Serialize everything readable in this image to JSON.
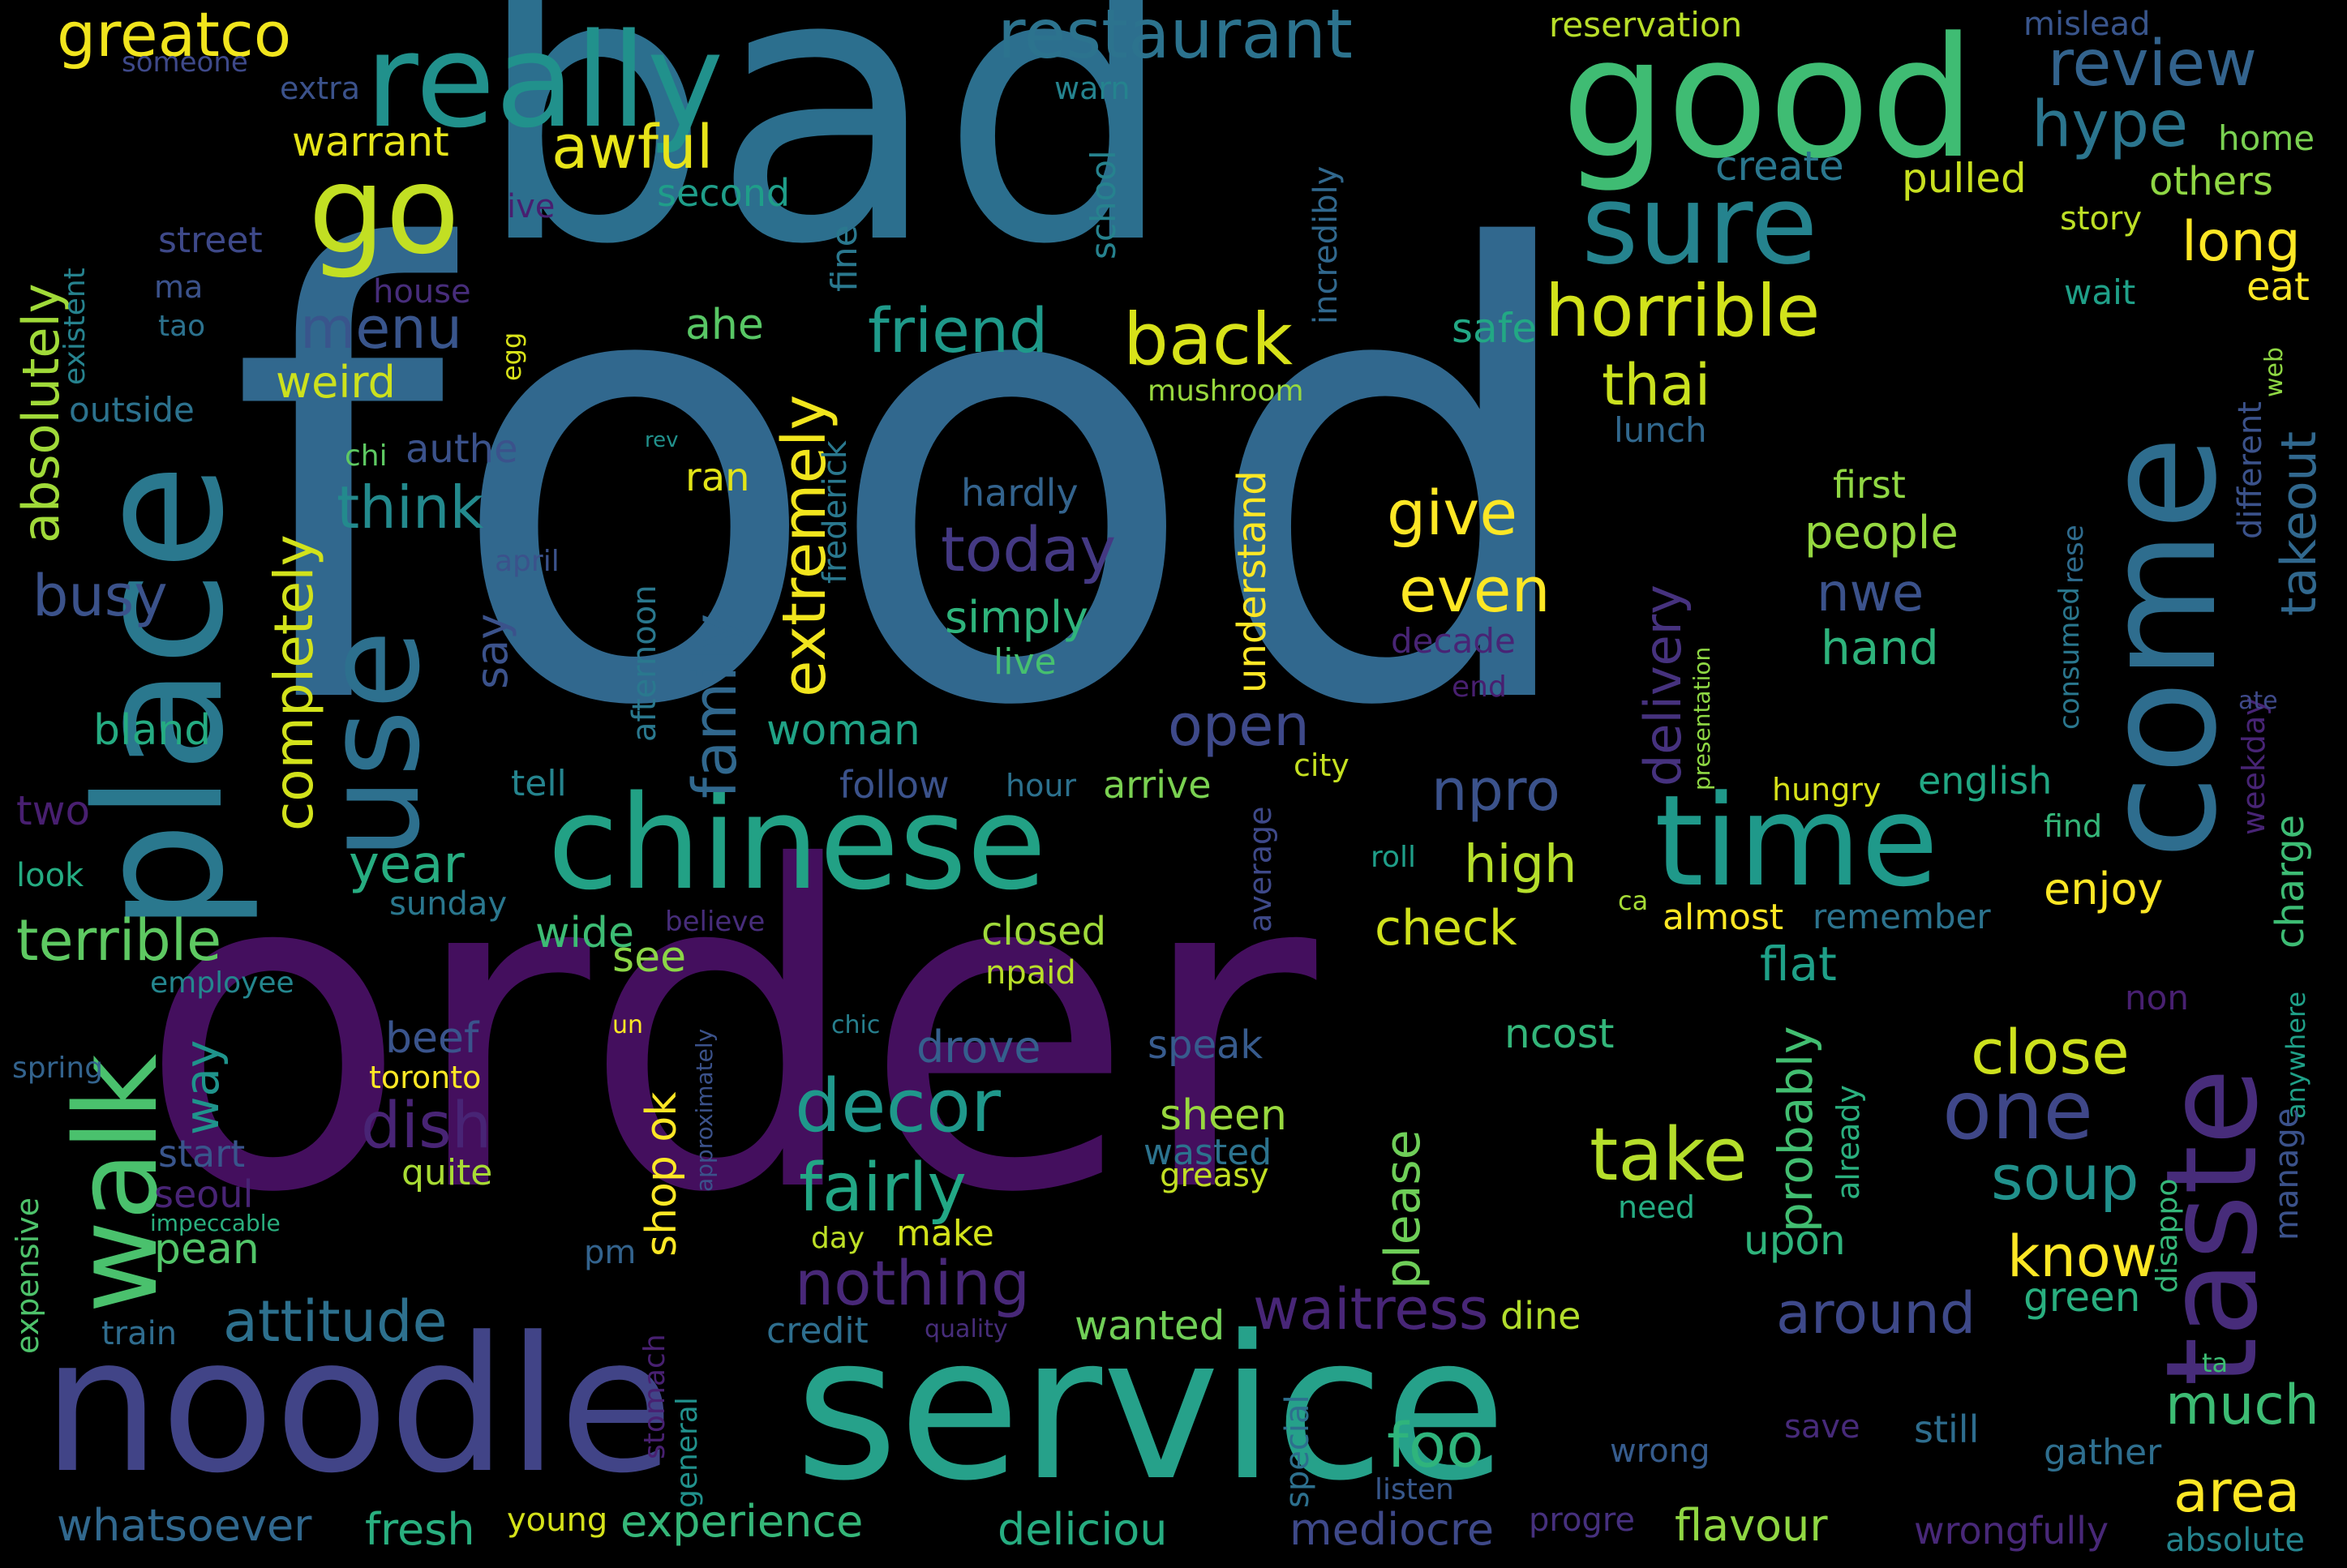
{
  "words": [
    {
      "text": "food",
      "color": "#31688e"
    },
    {
      "text": "order",
      "color": "#440f5e"
    },
    {
      "text": "bad",
      "color": "#2c6f8e"
    },
    {
      "text": "service",
      "color": "#26a18a"
    },
    {
      "text": "noodle",
      "color": "#414487"
    },
    {
      "text": "place",
      "color": "#2a788e"
    },
    {
      "text": "come",
      "color": "#2e6d8e"
    },
    {
      "text": "good",
      "color": "#3fbc73"
    },
    {
      "text": "really",
      "color": "#21918c"
    },
    {
      "text": "taste",
      "color": "#472c7a"
    },
    {
      "text": "chinese",
      "color": "#22a185"
    },
    {
      "text": "time",
      "color": "#1f998a"
    },
    {
      "text": "use",
      "color": "#2d708e"
    },
    {
      "text": "sure",
      "color": "#25838e"
    },
    {
      "text": "go",
      "color": "#c2df23"
    },
    {
      "text": "walk",
      "color": "#4ac16d"
    },
    {
      "text": "horrible",
      "color": "#d2e21b"
    },
    {
      "text": "restaurant",
      "color": "#2c738e"
    },
    {
      "text": "review",
      "color": "#33638d"
    },
    {
      "text": "hype",
      "color": "#2b758e"
    },
    {
      "text": "greatco",
      "color": "#f1e51d"
    },
    {
      "text": "awful",
      "color": "#e7e419"
    },
    {
      "text": "one",
      "color": "#3f4788"
    },
    {
      "text": "take",
      "color": "#b5de2b"
    },
    {
      "text": "decor",
      "color": "#1f988b"
    },
    {
      "text": "fairly",
      "color": "#22a785"
    },
    {
      "text": "nothing",
      "color": "#482878"
    },
    {
      "text": "close",
      "color": "#cde11d"
    },
    {
      "text": "soup",
      "color": "#21918c"
    },
    {
      "text": "know",
      "color": "#fde725"
    },
    {
      "text": "long",
      "color": "#fde725"
    },
    {
      "text": "back",
      "color": "#d8e219"
    },
    {
      "text": "friend",
      "color": "#1f9a8a"
    },
    {
      "text": "menu",
      "color": "#39558c"
    },
    {
      "text": "thai",
      "color": "#cae11f"
    },
    {
      "text": "think",
      "color": "#238a8d"
    },
    {
      "text": "busy",
      "color": "#3b528b"
    },
    {
      "text": "terrible",
      "color": "#5ec962"
    },
    {
      "text": "attitude",
      "color": "#2d708e"
    },
    {
      "text": "absolutely",
      "color": "#a0da39"
    },
    {
      "text": "completely",
      "color": "#d2e21b"
    },
    {
      "text": "family",
      "color": "#31688e"
    },
    {
      "text": "extremely",
      "color": "#f1e51d"
    },
    {
      "text": "delivery",
      "color": "#46327e"
    },
    {
      "text": "takeout",
      "color": "#31688e"
    },
    {
      "text": "npro",
      "color": "#3b528b"
    },
    {
      "text": "give",
      "color": "#fde725"
    },
    {
      "text": "even",
      "color": "#fde725"
    },
    {
      "text": "today",
      "color": "#443983"
    },
    {
      "text": "open",
      "color": "#3e4989"
    },
    {
      "text": "waitress",
      "color": "#482677"
    },
    {
      "text": "around",
      "color": "#3e4989"
    },
    {
      "text": "dish",
      "color": "#482475"
    },
    {
      "text": "much",
      "color": "#3dbc74"
    },
    {
      "text": "area",
      "color": "#fde725"
    },
    {
      "text": "whatsoever",
      "color": "#31688e"
    },
    {
      "text": "experience",
      "color": "#35b779"
    },
    {
      "text": "deliciou",
      "color": "#26ad81"
    },
    {
      "text": "mediocre",
      "color": "#3e4989"
    },
    {
      "text": "flavour",
      "color": "#90d743"
    },
    {
      "text": "wrongfully",
      "color": "#482878"
    },
    {
      "text": "absolute",
      "color": "#25848e"
    },
    {
      "text": "fresh",
      "color": "#29af7f"
    },
    {
      "text": "young",
      "color": "#d5e21a"
    },
    {
      "text": "progre",
      "color": "#46307e"
    },
    {
      "text": "foo",
      "color": "#2fb47c"
    },
    {
      "text": "year",
      "color": "#27ad81"
    },
    {
      "text": "high",
      "color": "#b5de2b"
    },
    {
      "text": "check",
      "color": "#d0e11c"
    },
    {
      "text": "enjoy",
      "color": "#fde725"
    },
    {
      "text": "flat",
      "color": "#1fa088"
    },
    {
      "text": "hand",
      "color": "#2eb37c"
    },
    {
      "text": "nwe",
      "color": "#3b528b"
    },
    {
      "text": "people",
      "color": "#95d840"
    },
    {
      "text": "first",
      "color": "#90d743"
    },
    {
      "text": "please",
      "color": "#6ece58"
    },
    {
      "text": "probably",
      "color": "#42be71"
    },
    {
      "text": "shop ok",
      "color": "#fde725"
    },
    {
      "text": "say",
      "color": "#3b528b"
    },
    {
      "text": "way",
      "color": "#1f948c"
    },
    {
      "text": "woman",
      "color": "#20a386"
    },
    {
      "text": "bland",
      "color": "#25ac82"
    },
    {
      "text": "two",
      "color": "#481f70"
    },
    {
      "text": "see",
      "color": "#8bd646"
    },
    {
      "text": "wide",
      "color": "#3dbc74"
    },
    {
      "text": "sheen",
      "color": "#98d83e"
    },
    {
      "text": "speak",
      "color": "#375b8d"
    },
    {
      "text": "drove",
      "color": "#355f8d"
    },
    {
      "text": "beef",
      "color": "#3a548c"
    },
    {
      "text": "toronto",
      "color": "#fde725"
    },
    {
      "text": "seoul",
      "color": "#482475"
    },
    {
      "text": "start",
      "color": "#39558c"
    },
    {
      "text": "pean",
      "color": "#52c569"
    },
    {
      "text": "quite",
      "color": "#a8db34"
    },
    {
      "text": "wasted",
      "color": "#2c738e"
    },
    {
      "text": "greasy",
      "color": "#c2df23"
    },
    {
      "text": "day",
      "color": "#bddf26"
    },
    {
      "text": "make",
      "color": "#d2e21b"
    },
    {
      "text": "upon",
      "color": "#2fb47c"
    },
    {
      "text": "green",
      "color": "#29af7f"
    },
    {
      "text": "stil",
      "color": "#3b528b"
    },
    {
      "text": "dine",
      "color": "#b2dd2d"
    },
    {
      "text": "wanted",
      "color": "#70cf57"
    },
    {
      "text": "credit",
      "color": "#2e6e8e"
    },
    {
      "text": "quality",
      "color": "#472d7b"
    },
    {
      "text": "still",
      "color": "#2e6d8e"
    },
    {
      "text": "gather",
      "color": "#2e6e8e"
    },
    {
      "text": "save",
      "color": "#472a7a"
    },
    {
      "text": "wrong",
      "color": "#365c8d"
    },
    {
      "text": "listen",
      "color": "#38588c"
    },
    {
      "text": "ncost",
      "color": "#33b67a"
    },
    {
      "text": "need",
      "color": "#25ac82"
    },
    {
      "text": "closed",
      "color": "#9fda3a"
    },
    {
      "text": "npaid",
      "color": "#b8de29"
    },
    {
      "text": "almost",
      "color": "#fde725"
    },
    {
      "text": "remember",
      "color": "#2c738e"
    },
    {
      "text": "ca",
      "color": "#a5db36"
    },
    {
      "text": "roll",
      "color": "#1f9e89"
    },
    {
      "text": "sunday",
      "color": "#2a778e"
    },
    {
      "text": "employee",
      "color": "#24868e"
    },
    {
      "text": "spring",
      "color": "#33638d"
    },
    {
      "text": "look",
      "color": "#25ac82"
    },
    {
      "text": "train",
      "color": "#2f6c8e"
    },
    {
      "text": "expensive",
      "color": "#4ec36b"
    },
    {
      "text": "impeccable",
      "color": "#2ab07f"
    },
    {
      "text": "pm",
      "color": "#33638d"
    },
    {
      "text": "tell",
      "color": "#25848e"
    },
    {
      "text": "follow",
      "color": "#3b528b"
    },
    {
      "text": "hour",
      "color": "#2c718e"
    },
    {
      "text": "arrive",
      "color": "#7ad151"
    },
    {
      "text": "city",
      "color": "#c5e021"
    },
    {
      "text": "hungry",
      "color": "#d8e219"
    },
    {
      "text": "english",
      "color": "#22a884"
    },
    {
      "text": "find",
      "color": "#35b779"
    },
    {
      "text": "average",
      "color": "#3e4989"
    },
    {
      "text": "special",
      "color": "#2d708e"
    },
    {
      "text": "general",
      "color": "#21918c"
    },
    {
      "text": "stomach",
      "color": "#482071"
    },
    {
      "text": "ahe",
      "color": "#58c765"
    },
    {
      "text": "ran",
      "color": "#e2e418"
    },
    {
      "text": "safe",
      "color": "#22a884"
    },
    {
      "text": "mushroom",
      "color": "#98d83e"
    },
    {
      "text": "lunch",
      "color": "#31688e"
    },
    {
      "text": "hardly",
      "color": "#33638d"
    },
    {
      "text": "simply",
      "color": "#2fb47c"
    },
    {
      "text": "live",
      "color": "#46c06f"
    },
    {
      "text": "decade",
      "color": "#482475"
    },
    {
      "text": "end",
      "color": "#481f70"
    },
    {
      "text": "understand",
      "color": "#fde725"
    },
    {
      "text": "weird",
      "color": "#cde11d"
    },
    {
      "text": "authe",
      "color": "#3b528b"
    },
    {
      "text": "outside",
      "color": "#2c728e"
    },
    {
      "text": "existent",
      "color": "#26828e"
    },
    {
      "text": "tao",
      "color": "#2c728e"
    },
    {
      "text": "ma",
      "color": "#3b528b"
    },
    {
      "text": "street",
      "color": "#3e4989"
    },
    {
      "text": "house",
      "color": "#472d7b"
    },
    {
      "text": "ive",
      "color": "#481f70"
    },
    {
      "text": "egg",
      "color": "#d8e219"
    },
    {
      "text": "chi",
      "color": "#5ec962"
    },
    {
      "text": "rev",
      "color": "#21918c"
    },
    {
      "text": "april",
      "color": "#3b528b"
    },
    {
      "text": "afternoon",
      "color": "#2a788e"
    },
    {
      "text": "frederick",
      "color": "#2a788e"
    },
    {
      "text": "fine",
      "color": "#2a788e"
    },
    {
      "text": "school",
      "color": "#26828e"
    },
    {
      "text": "incredibly",
      "color": "#31688e"
    },
    {
      "text": "warrant",
      "color": "#e5e419"
    },
    {
      "text": "second",
      "color": "#1f9e89"
    },
    {
      "text": "extra",
      "color": "#3b528b"
    },
    {
      "text": "someone",
      "color": "#3e4989"
    },
    {
      "text": "warn",
      "color": "#25838e"
    },
    {
      "text": "reservation",
      "color": "#b8de29"
    },
    {
      "text": "mislead",
      "color": "#39558c"
    },
    {
      "text": "create",
      "color": "#2a778e"
    },
    {
      "text": "pulled",
      "color": "#c8e020"
    },
    {
      "text": "others",
      "color": "#8fd744"
    },
    {
      "text": "home",
      "color": "#7ad151"
    },
    {
      "text": "story",
      "color": "#bddf26"
    },
    {
      "text": "eat",
      "color": "#fde725"
    },
    {
      "text": "wait",
      "color": "#1fa088"
    },
    {
      "text": "web",
      "color": "#8fd744"
    },
    {
      "text": "different",
      "color": "#3b528b"
    },
    {
      "text": "consumed",
      "color": "#2a778e"
    },
    {
      "text": "rese",
      "color": "#2f6c8e"
    },
    {
      "text": "presentation",
      "color": "#8fd744"
    },
    {
      "text": "weekday",
      "color": "#482475"
    },
    {
      "text": "ate",
      "color": "#3e4989"
    },
    {
      "text": "charge",
      "color": "#3dbc74"
    },
    {
      "text": "anywhere",
      "color": "#1fa088"
    },
    {
      "text": "manage",
      "color": "#3b528b"
    },
    {
      "text": "non",
      "color": "#482071"
    },
    {
      "text": "disappo",
      "color": "#35b779"
    },
    {
      "text": "ta",
      "color": "#3dbc74"
    },
    {
      "text": "already",
      "color": "#2ab07f"
    },
    {
      "text": "chic",
      "color": "#277f8e"
    },
    {
      "text": "un",
      "color": "#fde725"
    },
    {
      "text": "approximately",
      "color": "#3b528b"
    },
    {
      "text": "believe",
      "color": "#472d7b"
    }
  ]
}
